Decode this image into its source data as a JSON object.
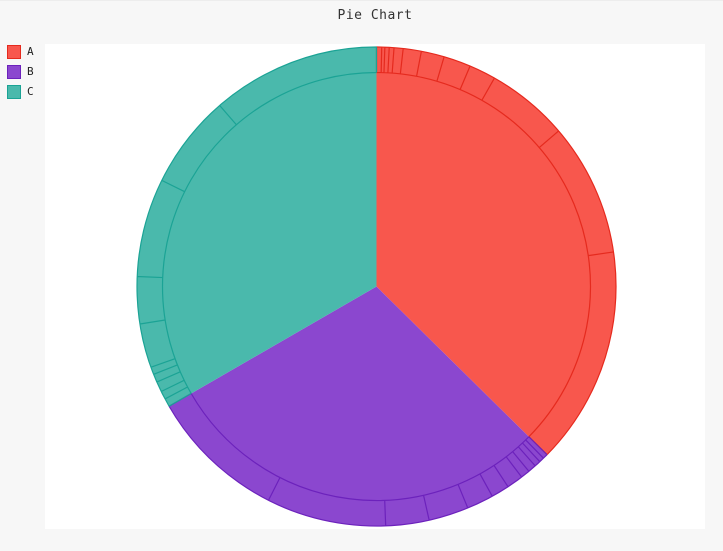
{
  "title": "Pie Chart",
  "legend": {
    "position": "top-left",
    "items": [
      {
        "label": "A",
        "color": "#f8574d",
        "border": "#e52a1e"
      },
      {
        "label": "B",
        "color": "#8b47cf",
        "border": "#6c22bc"
      },
      {
        "label": "C",
        "color": "#4ab9ac",
        "border": "#1ba395"
      }
    ]
  },
  "chart_data": {
    "type": "pie",
    "title": "Pie Chart",
    "categories": [
      "A",
      "B",
      "C"
    ],
    "values": [
      37.4,
      29.3,
      33.3
    ],
    "values_unit": "percent_of_circle",
    "start_angle": "12 o'clock, clockwise",
    "legend_position": "top-left",
    "grid": false,
    "sectors": [
      {
        "label": "A",
        "fill": "#f8574d",
        "stroke": "#e52a1e",
        "start_deg": 0,
        "end_deg": 134.6,
        "percent": 37.4,
        "record_count": 12,
        "slice_boundaries_deg": [
          0,
          1.25,
          2.0,
          3.05,
          4.2,
          6.4,
          10.8,
          16.4,
          23.0,
          29.5,
          49.5,
          81.7,
          134.6
        ]
      },
      {
        "label": "B",
        "fill": "#8b47cf",
        "stroke": "#6c22bc",
        "start_deg": 134.6,
        "end_deg": 240.0,
        "percent": 29.3,
        "record_count": 12,
        "slice_boundaries_deg": [
          134.6,
          135.8,
          137.0,
          138.5,
          140.5,
          142.7,
          146.7,
          151.1,
          157.6,
          167.3,
          177.8,
          206.8,
          240.0
        ]
      },
      {
        "label": "C",
        "fill": "#4ab9ac",
        "stroke": "#1ba395",
        "start_deg": 240.0,
        "end_deg": 360.0,
        "percent": 33.3,
        "record_count": 10,
        "slice_boundaries_deg": [
          240.0,
          242.0,
          244.0,
          246.5,
          248.5,
          250.3,
          261.0,
          272.4,
          296.3,
          319.1,
          360.0
        ]
      }
    ],
    "geometry": {
      "cx": 376.5,
      "cy": 285.5,
      "radius": 239.5,
      "inner_band_radius": 214,
      "stroke_width": 1.2
    },
    "colors": {
      "background": "#f7f7f7",
      "plot_background": "#ffffff",
      "title_text": "#333333"
    }
  }
}
